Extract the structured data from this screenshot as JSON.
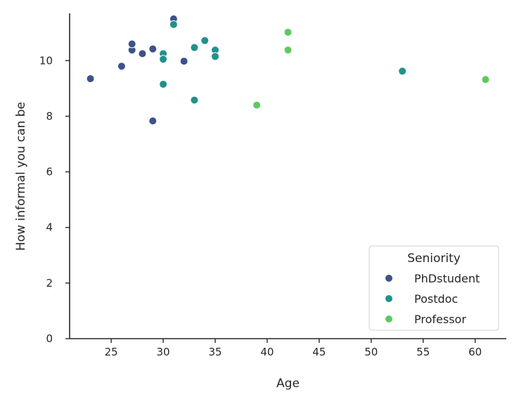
{
  "chart_data": {
    "type": "scatter",
    "xlabel": "Age",
    "ylabel": "How informal you can be",
    "xlim": [
      21,
      63
    ],
    "ylim": [
      0,
      11.7
    ],
    "xticks": [
      25,
      30,
      35,
      40,
      45,
      50,
      55,
      60
    ],
    "yticks": [
      0,
      2,
      4,
      6,
      8,
      10
    ],
    "grid": false,
    "legend": {
      "title": "Seniority",
      "placement": "lower-right"
    },
    "series": [
      {
        "name": "PhDstudent",
        "color": "#3b528b",
        "points": [
          {
            "x": 23,
            "y": 9.35
          },
          {
            "x": 26,
            "y": 9.8
          },
          {
            "x": 27,
            "y": 10.38
          },
          {
            "x": 27,
            "y": 10.6
          },
          {
            "x": 28,
            "y": 10.25
          },
          {
            "x": 29,
            "y": 10.42
          },
          {
            "x": 29,
            "y": 7.83
          },
          {
            "x": 31,
            "y": 11.5
          },
          {
            "x": 32,
            "y": 9.98
          }
        ]
      },
      {
        "name": "Postdoc",
        "color": "#21918c",
        "points": [
          {
            "x": 30,
            "y": 10.25
          },
          {
            "x": 30,
            "y": 10.05
          },
          {
            "x": 30,
            "y": 9.15
          },
          {
            "x": 31,
            "y": 11.3
          },
          {
            "x": 33,
            "y": 10.47
          },
          {
            "x": 33,
            "y": 8.58
          },
          {
            "x": 34,
            "y": 10.72
          },
          {
            "x": 35,
            "y": 10.38
          },
          {
            "x": 35,
            "y": 10.15
          },
          {
            "x": 53,
            "y": 9.62
          }
        ]
      },
      {
        "name": "Professor",
        "color": "#5ec962",
        "points": [
          {
            "x": 39,
            "y": 8.4
          },
          {
            "x": 42,
            "y": 11.02
          },
          {
            "x": 42,
            "y": 10.38
          },
          {
            "x": 61,
            "y": 9.32
          }
        ]
      }
    ]
  }
}
